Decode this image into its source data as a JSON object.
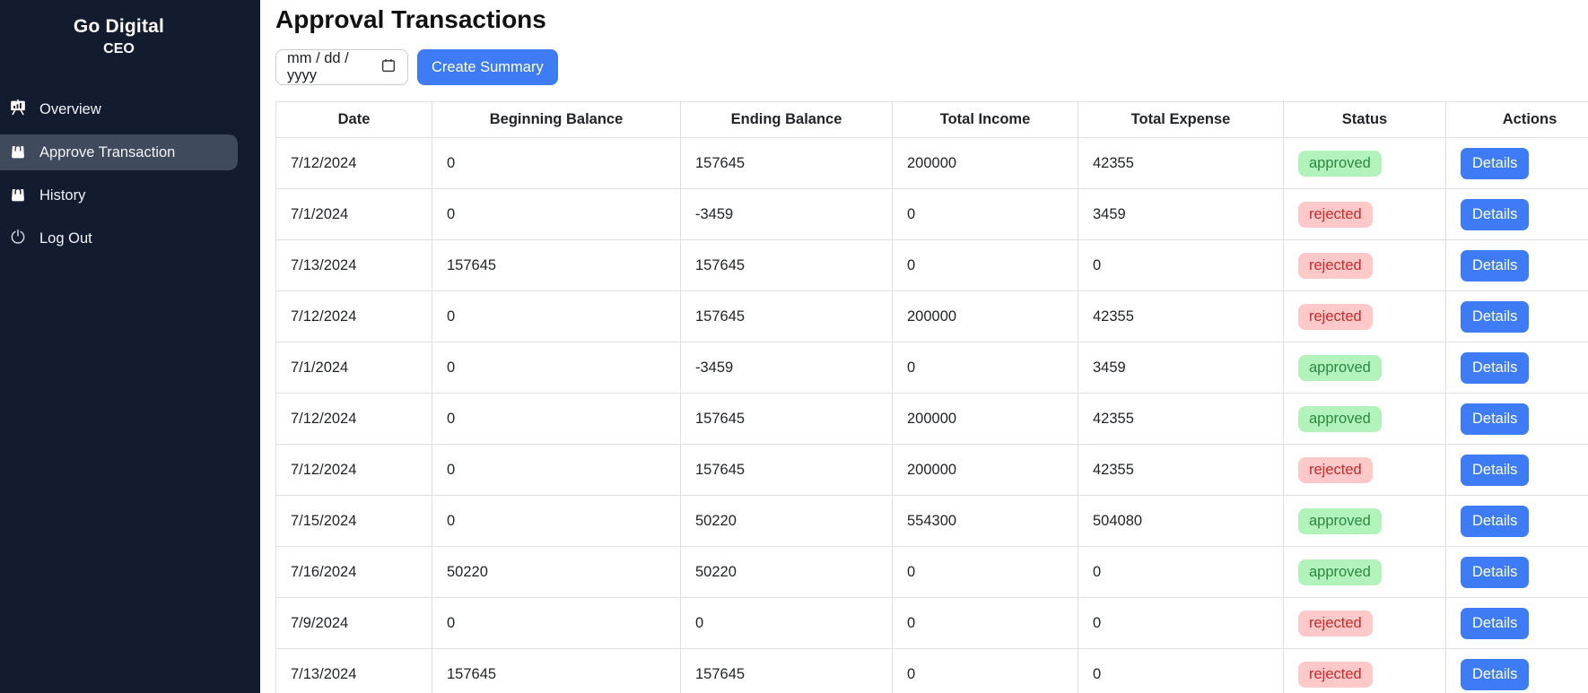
{
  "sidebar": {
    "brand": "Go Digital",
    "role": "CEO",
    "items": [
      {
        "label": "Overview",
        "icon": "presentation-chart-icon",
        "active": false
      },
      {
        "label": "Approve Transaction",
        "icon": "shopping-bag-icon",
        "active": true
      },
      {
        "label": "History",
        "icon": "shopping-bag-icon",
        "active": false
      },
      {
        "label": "Log Out",
        "icon": "power-icon",
        "active": false
      }
    ]
  },
  "main": {
    "title": "Approval Transactions",
    "date_input": {
      "placeholder": "mm / dd / yyyy"
    },
    "create_summary_label": "Create Summary",
    "table": {
      "columns": [
        "Date",
        "Beginning Balance",
        "Ending Balance",
        "Total Income",
        "Total Expense",
        "Status",
        "Actions"
      ],
      "details_label": "Details",
      "rows": [
        {
          "date": "7/12/2024",
          "beginning_balance": "0",
          "ending_balance": "157645",
          "total_income": "200000",
          "total_expense": "42355",
          "status": "approved"
        },
        {
          "date": "7/1/2024",
          "beginning_balance": "0",
          "ending_balance": "-3459",
          "total_income": "0",
          "total_expense": "3459",
          "status": "rejected"
        },
        {
          "date": "7/13/2024",
          "beginning_balance": "157645",
          "ending_balance": "157645",
          "total_income": "0",
          "total_expense": "0",
          "status": "rejected"
        },
        {
          "date": "7/12/2024",
          "beginning_balance": "0",
          "ending_balance": "157645",
          "total_income": "200000",
          "total_expense": "42355",
          "status": "rejected"
        },
        {
          "date": "7/1/2024",
          "beginning_balance": "0",
          "ending_balance": "-3459",
          "total_income": "0",
          "total_expense": "3459",
          "status": "approved"
        },
        {
          "date": "7/12/2024",
          "beginning_balance": "0",
          "ending_balance": "157645",
          "total_income": "200000",
          "total_expense": "42355",
          "status": "approved"
        },
        {
          "date": "7/12/2024",
          "beginning_balance": "0",
          "ending_balance": "157645",
          "total_income": "200000",
          "total_expense": "42355",
          "status": "rejected"
        },
        {
          "date": "7/15/2024",
          "beginning_balance": "0",
          "ending_balance": "50220",
          "total_income": "554300",
          "total_expense": "504080",
          "status": "approved"
        },
        {
          "date": "7/16/2024",
          "beginning_balance": "50220",
          "ending_balance": "50220",
          "total_income": "0",
          "total_expense": "0",
          "status": "approved"
        },
        {
          "date": "7/9/2024",
          "beginning_balance": "0",
          "ending_balance": "0",
          "total_income": "0",
          "total_expense": "0",
          "status": "rejected"
        },
        {
          "date": "7/13/2024",
          "beginning_balance": "157645",
          "ending_balance": "157645",
          "total_income": "0",
          "total_expense": "0",
          "status": "rejected"
        }
      ]
    }
  },
  "colors": {
    "sidebar_bg": "#131b2e",
    "active_item_bg": "#3f4a5c",
    "primary_blue": "#3d7cf5",
    "approved_bg": "#b2f2bb",
    "approved_text": "#2b8a3e",
    "rejected_bg": "#ffc9c9",
    "rejected_text": "#c92a2a",
    "table_border": "#dee2e6"
  }
}
